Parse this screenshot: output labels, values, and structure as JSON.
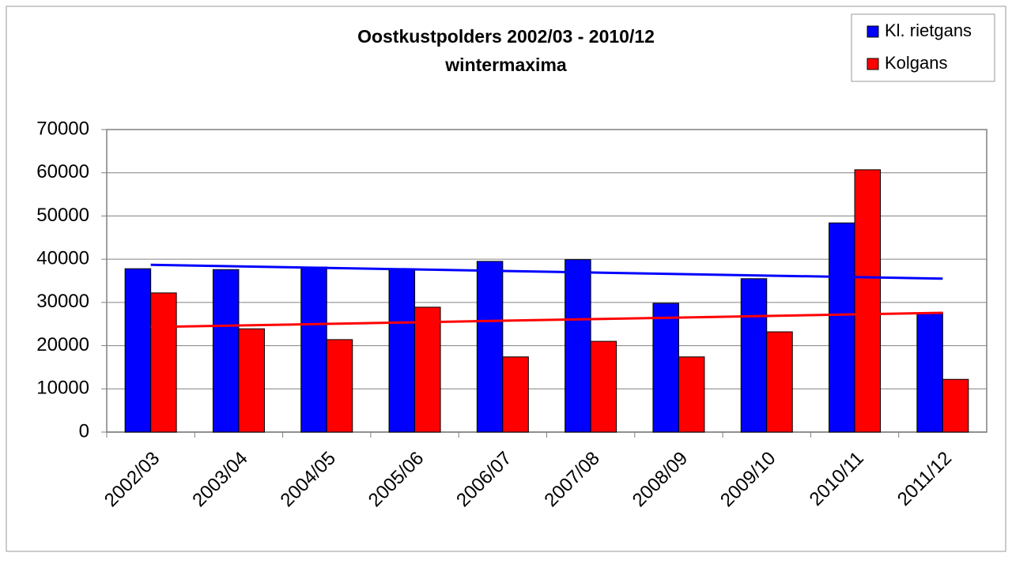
{
  "chart_data": {
    "type": "bar",
    "title": "Oostkustpolders 2002/03 - 2010/12",
    "subtitle": "wintermaxima",
    "categories": [
      "2002/03",
      "2003/04",
      "2004/05",
      "2005/06",
      "2006/07",
      "2007/08",
      "2008/09",
      "2009/10",
      "2010/11",
      "2011/12"
    ],
    "series": [
      {
        "name": "Kl. rietgans",
        "color": "#0000ff",
        "values": [
          37800,
          37600,
          38200,
          37600,
          39500,
          39900,
          29800,
          35500,
          48400,
          27600
        ],
        "trendline": [
          38700,
          35500
        ]
      },
      {
        "name": "Kolgans",
        "color": "#ff0000",
        "values": [
          32200,
          23900,
          21400,
          28900,
          17400,
          21000,
          17400,
          23200,
          60700,
          12200
        ],
        "trendline": [
          24300,
          27600
        ]
      }
    ],
    "ylim": [
      0,
      70000
    ],
    "yticks": [
      0,
      10000,
      20000,
      30000,
      40000,
      50000,
      60000,
      70000
    ],
    "grid": true,
    "legend": "top-right"
  }
}
